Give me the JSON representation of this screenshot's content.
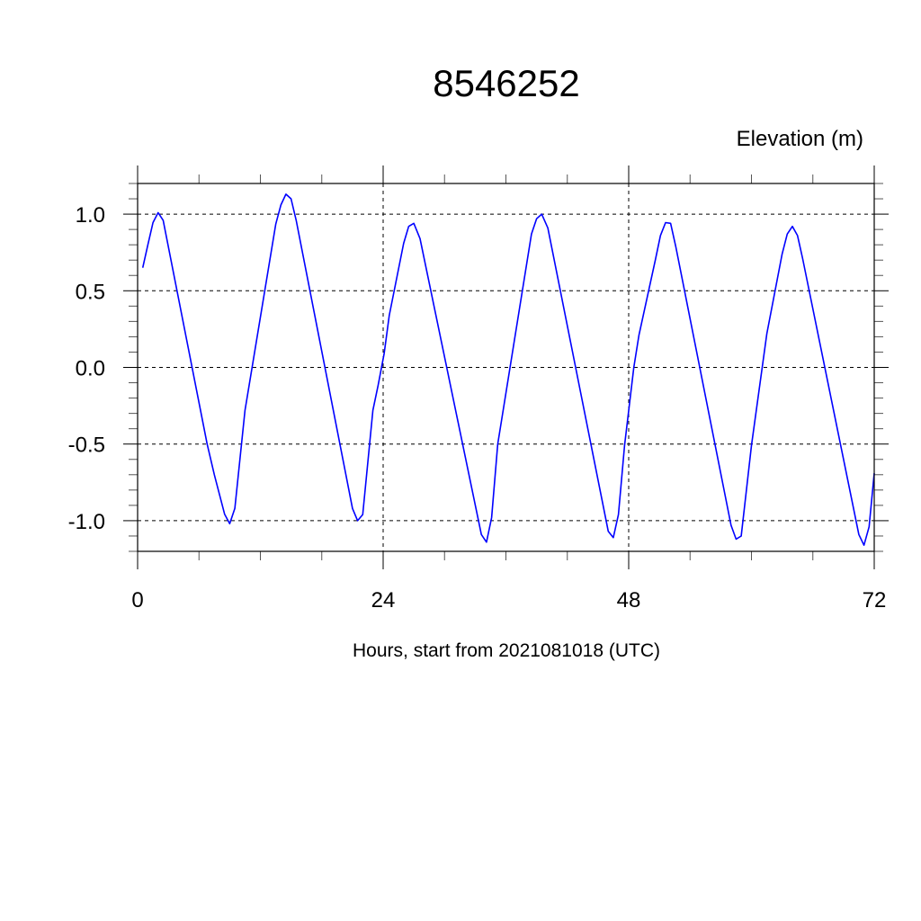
{
  "chart_data": {
    "type": "line",
    "title": "8546252",
    "subtitle_right": "Elevation (m)",
    "xlabel": "Hours, start from 2021081018 (UTC)",
    "ylabel": "",
    "xlim": [
      0,
      72
    ],
    "ylim": [
      -1.2,
      1.2
    ],
    "x_major_ticks": [
      0,
      24,
      48,
      72
    ],
    "x_tick_labels": [
      "0",
      "24",
      "48",
      "72"
    ],
    "x_minor_step": 6,
    "y_major_ticks": [
      1.0,
      0.5,
      0.0,
      -0.5,
      -1.0
    ],
    "y_tick_labels": [
      "1.0",
      "0.5",
      "0.0",
      "-0.5",
      "-1.0"
    ],
    "y_minor_step": 0.1,
    "grid": {
      "horizontal": [
        1.0,
        0.5,
        0.0,
        -0.5,
        -1.0
      ],
      "vertical": [
        24,
        48
      ],
      "style": "dashed"
    },
    "line_color": "#0000ff",
    "series": [
      {
        "x": [
          0.5,
          1.0,
          1.5,
          2.0,
          2.5,
          6.8,
          7.5,
          8.5,
          9.0,
          9.5,
          10.5,
          13.5,
          14.0,
          14.5,
          15.0,
          15.5,
          21.0,
          21.5,
          22.0,
          23.0,
          23.5,
          24.1,
          24.6,
          26.0,
          26.5,
          27.0,
          27.6,
          33.6,
          34.1,
          34.6,
          35.2,
          38.5,
          39.0,
          39.5,
          40.1,
          46.0,
          46.5,
          47.0,
          47.6,
          48.5,
          49.0,
          50.6,
          51.1,
          51.6,
          52.1,
          52.6,
          58.0,
          58.5,
          59.0,
          60.0,
          61.5,
          63.0,
          63.5,
          64.0,
          64.5,
          65.0,
          70.5,
          71.0,
          71.5,
          72.0
        ],
        "y": [
          0.65,
          0.8,
          0.945,
          1.01,
          0.96,
          -0.5,
          -0.7,
          -0.957,
          -1.02,
          -0.92,
          -0.28,
          0.935,
          1.06,
          1.13,
          1.1,
          0.96,
          -0.92,
          -1.0,
          -0.96,
          -0.28,
          -0.12,
          0.09,
          0.34,
          0.81,
          0.92,
          0.94,
          0.84,
          -1.09,
          -1.14,
          -0.98,
          -0.5,
          0.87,
          0.97,
          1.0,
          0.91,
          -1.07,
          -1.11,
          -0.96,
          -0.51,
          0.0,
          0.21,
          0.7,
          0.86,
          0.945,
          0.94,
          0.79,
          -1.03,
          -1.12,
          -1.1,
          -0.51,
          0.22,
          0.74,
          0.87,
          0.92,
          0.86,
          0.71,
          -1.09,
          -1.16,
          -1.04,
          -0.69
        ]
      }
    ]
  }
}
